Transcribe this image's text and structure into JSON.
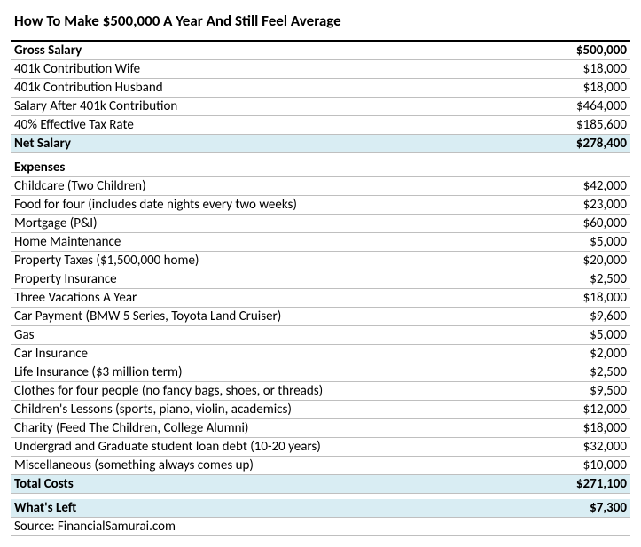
{
  "title": "How To Make $500,000 A Year And Still Feel Average",
  "colors": {
    "highlight": "#d9edf3",
    "border": "#bfbfbf",
    "text": "#000000",
    "background": "#ffffff"
  },
  "income": {
    "header": {
      "label": "Gross Salary",
      "value": "$500,000"
    },
    "rows": [
      {
        "label": "401k Contribution Wife",
        "value": "$18,000"
      },
      {
        "label": "401k Contribution Husband",
        "value": "$18,000"
      },
      {
        "label": "Salary After 401k Contribution",
        "value": "$464,000"
      },
      {
        "label": "40% Effective Tax Rate",
        "value": "$185,600"
      }
    ],
    "total": {
      "label": "Net Salary",
      "value": "$278,400"
    }
  },
  "expenses": {
    "header": {
      "label": "Expenses"
    },
    "rows": [
      {
        "label": "Childcare (Two Children)",
        "value": "$42,000"
      },
      {
        "label": "Food for four (includes date nights every two weeks)",
        "value": "$23,000"
      },
      {
        "label": "Mortgage (P&I)",
        "value": "$60,000"
      },
      {
        "label": "Home Maintenance",
        "value": "$5,000"
      },
      {
        "label": "Property Taxes ($1,500,000 home)",
        "value": "$20,000"
      },
      {
        "label": "Property Insurance",
        "value": "$2,500"
      },
      {
        "label": "Three Vacations A Year",
        "value": "$18,000"
      },
      {
        "label": "Car Payment (BMW 5 Series, Toyota Land Cruiser)",
        "value": "$9,600"
      },
      {
        "label": "Gas",
        "value": "$5,000"
      },
      {
        "label": "Car Insurance",
        "value": "$2,000"
      },
      {
        "label": "Life Insurance ($3 million term)",
        "value": "$2,500"
      },
      {
        "label": "Clothes for four people (no fancy bags, shoes, or threads)",
        "value": "$9,500"
      },
      {
        "label": "Children's Lessons (sports, piano, violin, academics)",
        "value": "$12,000"
      },
      {
        "label": "Charity (Feed The Children, College Alumni)",
        "value": "$18,000"
      },
      {
        "label": "Undergrad and Graduate student loan debt (10-20 years)",
        "value": "$32,000"
      },
      {
        "label": "Miscellaneous (something always comes up)",
        "value": "$10,000"
      }
    ],
    "total": {
      "label": "Total Costs",
      "value": "$271,100"
    }
  },
  "remainder": {
    "label": "What's Left",
    "value": "$7,300"
  },
  "source": "Source: FinancialSamurai.com"
}
